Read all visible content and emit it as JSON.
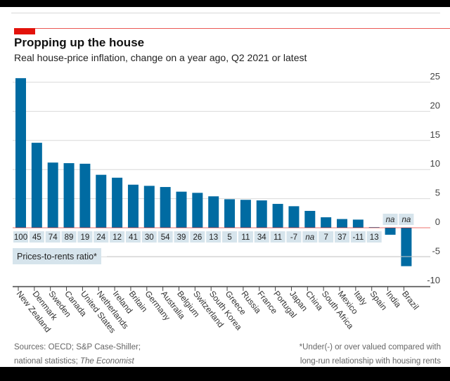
{
  "header": {
    "title": "Propping up the house",
    "subtitle": "Real house-price inflation, change on a year ago, Q2 2021 or latest"
  },
  "chart_data": {
    "type": "bar",
    "title": "Propping up the house",
    "subtitle": "Real house-price inflation, change on a year ago, Q2 2021 or latest",
    "categories": [
      "New Zealand",
      "Denmark",
      "Sweden",
      "Canada",
      "United States",
      "Netherlands",
      "Ireland",
      "Britain",
      "Germany",
      "Australia",
      "Belgium",
      "Switzerland",
      "South Korea",
      "Greece",
      "Russia",
      "France",
      "Portugal",
      "Japan",
      "China",
      "South Africa",
      "Mexico",
      "Italy",
      "Spain",
      "India",
      "Brazil"
    ],
    "values": [
      25.7,
      14.6,
      11.2,
      11.1,
      11.0,
      9.1,
      8.6,
      7.4,
      7.2,
      7.0,
      6.2,
      6.0,
      5.4,
      4.9,
      4.8,
      4.7,
      4.1,
      3.7,
      2.9,
      1.8,
      1.5,
      1.4,
      0.1,
      -1.2,
      -6.6
    ],
    "ylim": [
      -10,
      25
    ],
    "yticks": [
      25,
      20,
      15,
      10,
      5,
      0,
      -5,
      -10
    ],
    "grid": true,
    "y_axis_side": "right",
    "bar_color": "#006ba2",
    "annotation_series": {
      "name": "Prices-to-rents ratio*",
      "values": [
        "100",
        "45",
        "74",
        "89",
        "19",
        "24",
        "12",
        "41",
        "30",
        "54",
        "39",
        "26",
        "13",
        "5",
        "11",
        "34",
        "11",
        "-7",
        "na",
        "7",
        "37",
        "-11",
        "13",
        "na",
        "na"
      ]
    }
  },
  "footer": {
    "sources_line1": "Sources: OECD; S&P Case-Shiller;",
    "sources_line2": "national statistics; ",
    "sources_italic": "The Economist",
    "note_line1": "*Under(-) or over valued compared with",
    "note_line2": "long-run relationship with housing rents"
  },
  "colors": {
    "accent": "#e3120b",
    "bar": "#006ba2",
    "label_bg": "#d6e4ec"
  }
}
